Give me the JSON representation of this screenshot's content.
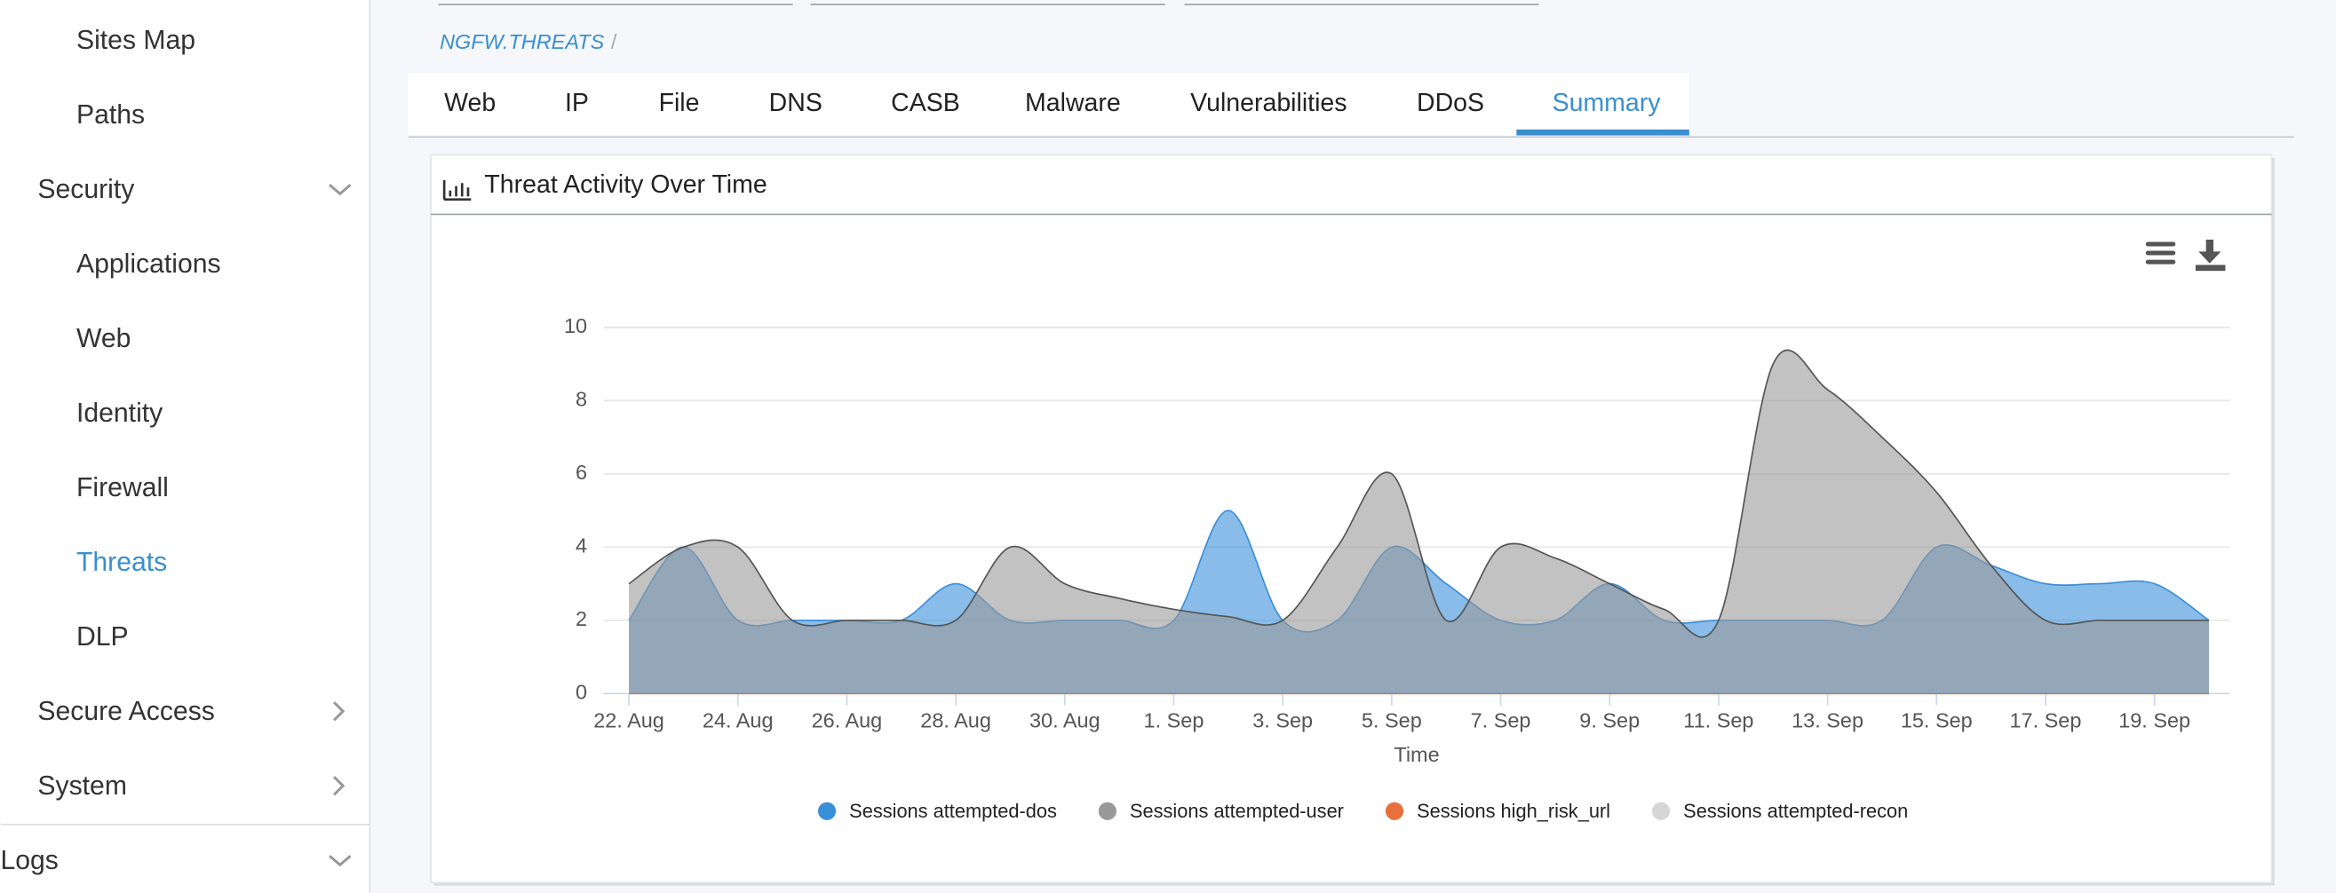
{
  "sidebar": {
    "items": [
      "Sites Map",
      "Paths",
      "Security",
      "Applications",
      "Web",
      "Identity",
      "Firewall",
      "Threats",
      "DLP",
      "Secure Access",
      "System",
      "Logs"
    ]
  },
  "breadcrumb": {
    "path": "NGFW.THREATS",
    "separator": "/"
  },
  "tabs": [
    "Web",
    "IP",
    "File",
    "DNS",
    "CASB",
    "Malware",
    "Vulnerabilities",
    "DDoS",
    "Summary"
  ],
  "panel": {
    "title": "Threat Activity Over Time"
  },
  "chart_data": {
    "type": "area",
    "x": [
      "22. Aug",
      "23. Aug",
      "24. Aug",
      "25. Aug",
      "26. Aug",
      "27. Aug",
      "28. Aug",
      "29. Aug",
      "30. Aug",
      "31. Aug",
      "1. Sep",
      "2. Sep",
      "3. Sep",
      "4. Sep",
      "5. Sep",
      "6. Sep",
      "7. Sep",
      "8. Sep",
      "9. Sep",
      "10. Sep",
      "11. Sep",
      "12. Sep",
      "13. Sep",
      "14. Sep",
      "15. Sep",
      "16. Sep",
      "17. Sep",
      "18. Sep",
      "19. Sep",
      "20. Sep"
    ],
    "xticks": [
      "22. Aug",
      "24. Aug",
      "26. Aug",
      "28. Aug",
      "30. Aug",
      "1. Sep",
      "3. Sep",
      "5. Sep",
      "7. Sep",
      "9. Sep",
      "11. Sep",
      "13. Sep",
      "15. Sep",
      "17. Sep",
      "19. Sep"
    ],
    "xlabel": "Time",
    "ylim": [
      0,
      10
    ],
    "yticks": [
      0,
      2,
      4,
      6,
      8,
      10
    ],
    "grid": true,
    "legend": "bottom",
    "series": [
      {
        "name": "Sessions attempted-dos",
        "color": "#3a8fd9",
        "values": [
          2,
          4,
          2,
          2,
          2,
          2,
          3,
          2,
          2,
          2,
          2,
          5,
          2,
          2,
          4,
          3,
          2,
          2,
          3,
          2,
          2,
          2,
          2,
          2,
          4,
          3.5,
          3,
          3,
          3,
          2
        ]
      },
      {
        "name": "Sessions attempted-user",
        "color": "#999999",
        "values": [
          3,
          4,
          4,
          2,
          2,
          2,
          2,
          4,
          3,
          2.6,
          2.3,
          2.1,
          2,
          4,
          6,
          2,
          4,
          3.7,
          3,
          2.3,
          2,
          9,
          8.3,
          7,
          5.5,
          3.5,
          2,
          2,
          2,
          2
        ]
      },
      {
        "name": "Sessions high_risk_url",
        "color": "#e8703a",
        "values": [
          0,
          0,
          0,
          0,
          0,
          0,
          0,
          0,
          0,
          0,
          0,
          0,
          0,
          0,
          0,
          0,
          0,
          0,
          0,
          0,
          0,
          0,
          0,
          0,
          0,
          0,
          0,
          0,
          0,
          0
        ]
      },
      {
        "name": "Sessions attempted-recon",
        "color": "#d6d6d6",
        "values": [
          0,
          0,
          0,
          0,
          0,
          0,
          0,
          0,
          0,
          0,
          0,
          0,
          0,
          0,
          0,
          0,
          0,
          0,
          0,
          0,
          0,
          0,
          0,
          0,
          0,
          0,
          0,
          0,
          0,
          0
        ]
      }
    ]
  }
}
